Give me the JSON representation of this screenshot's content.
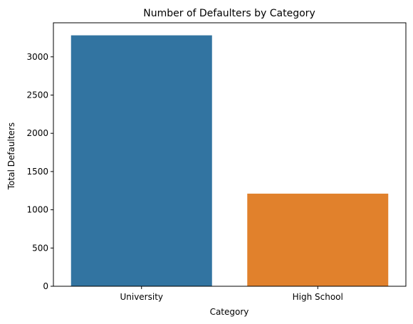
{
  "chart_data": {
    "type": "bar",
    "title": "Number of Defaulters by Category",
    "xlabel": "Category",
    "ylabel": "Total Defaulters",
    "categories": [
      "University",
      "High School"
    ],
    "values": [
      3281,
      1211
    ],
    "colors": [
      "#3274a1",
      "#e1812c"
    ],
    "ylim": [
      0,
      3445
    ],
    "yticks": [
      0,
      500,
      1000,
      1500,
      2000,
      2500,
      3000
    ],
    "grid": false
  }
}
